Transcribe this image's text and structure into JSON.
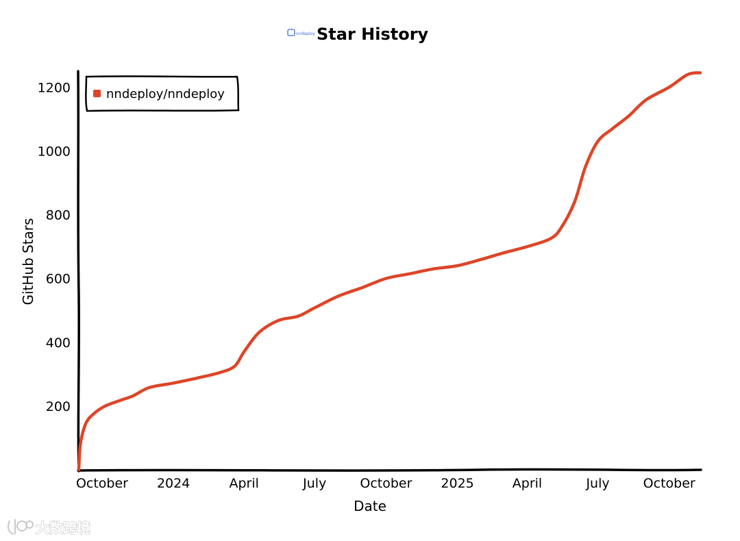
{
  "chart_data": {
    "type": "line",
    "title": "Star History",
    "logo_text": "nndeploy",
    "xlabel": "Date",
    "ylabel": "GitHub Stars",
    "ylim": [
      0,
      1250
    ],
    "yticks": [
      200,
      400,
      600,
      800,
      1000,
      1200
    ],
    "xlim": [
      "2023-09-01",
      "2025-11-10"
    ],
    "xticks": [
      {
        "date": "2023-10-01",
        "label": "October"
      },
      {
        "date": "2024-01-01",
        "label": "2024"
      },
      {
        "date": "2024-04-01",
        "label": "April"
      },
      {
        "date": "2024-07-01",
        "label": "July"
      },
      {
        "date": "2024-10-01",
        "label": "October"
      },
      {
        "date": "2025-01-01",
        "label": "2025"
      },
      {
        "date": "2025-04-01",
        "label": "April"
      },
      {
        "date": "2025-07-01",
        "label": "July"
      },
      {
        "date": "2025-10-01",
        "label": "October"
      }
    ],
    "legend_position": "top-left",
    "grid": false,
    "series": [
      {
        "name": "nndeploy/nndeploy",
        "color": "#dd4528",
        "points": [
          {
            "x": "2023-09-01",
            "y": 0
          },
          {
            "x": "2023-09-03",
            "y": 80
          },
          {
            "x": "2023-09-10",
            "y": 145
          },
          {
            "x": "2023-09-20",
            "y": 175
          },
          {
            "x": "2023-10-05",
            "y": 200
          },
          {
            "x": "2023-10-25",
            "y": 218
          },
          {
            "x": "2023-11-10",
            "y": 232
          },
          {
            "x": "2023-12-01",
            "y": 258
          },
          {
            "x": "2024-01-01",
            "y": 272
          },
          {
            "x": "2024-02-01",
            "y": 288
          },
          {
            "x": "2024-03-01",
            "y": 305
          },
          {
            "x": "2024-03-20",
            "y": 325
          },
          {
            "x": "2024-04-01",
            "y": 370
          },
          {
            "x": "2024-04-20",
            "y": 430
          },
          {
            "x": "2024-05-15",
            "y": 468
          },
          {
            "x": "2024-06-10",
            "y": 482
          },
          {
            "x": "2024-07-01",
            "y": 508
          },
          {
            "x": "2024-08-01",
            "y": 545
          },
          {
            "x": "2024-09-01",
            "y": 572
          },
          {
            "x": "2024-10-01",
            "y": 600
          },
          {
            "x": "2024-11-01",
            "y": 615
          },
          {
            "x": "2024-12-01",
            "y": 630
          },
          {
            "x": "2025-01-01",
            "y": 640
          },
          {
            "x": "2025-02-01",
            "y": 660
          },
          {
            "x": "2025-03-01",
            "y": 680
          },
          {
            "x": "2025-04-01",
            "y": 700
          },
          {
            "x": "2025-05-01",
            "y": 725
          },
          {
            "x": "2025-05-15",
            "y": 760
          },
          {
            "x": "2025-06-01",
            "y": 840
          },
          {
            "x": "2025-06-15",
            "y": 950
          },
          {
            "x": "2025-07-01",
            "y": 1030
          },
          {
            "x": "2025-07-20",
            "y": 1070
          },
          {
            "x": "2025-08-10",
            "y": 1110
          },
          {
            "x": "2025-09-01",
            "y": 1160
          },
          {
            "x": "2025-10-01",
            "y": 1200
          },
          {
            "x": "2025-10-25",
            "y": 1240
          },
          {
            "x": "2025-11-10",
            "y": 1245
          }
        ]
      }
    ]
  },
  "watermark": {
    "text": "大数跨境"
  }
}
